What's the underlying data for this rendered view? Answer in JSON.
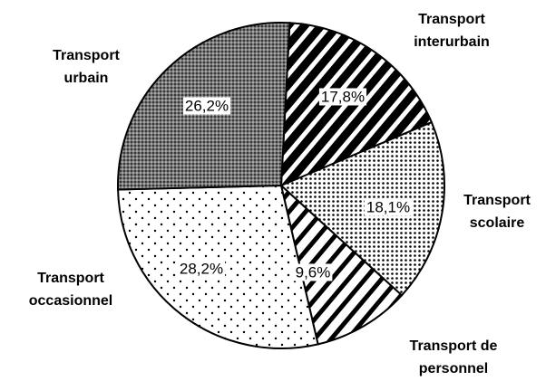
{
  "chart_data": {
    "type": "pie",
    "categories": [
      "Transport\ninterurbain",
      "Transport\nscolaire",
      "Transport de\npersonnel",
      "Transport\noccasionnel",
      "Transport\nurbain"
    ],
    "values": [
      17.8,
      18.1,
      9.6,
      28.2,
      26.2
    ],
    "value_labels": [
      "17,8%",
      "18,1%",
      "9,6%",
      "28,2%",
      "26,2%"
    ]
  }
}
